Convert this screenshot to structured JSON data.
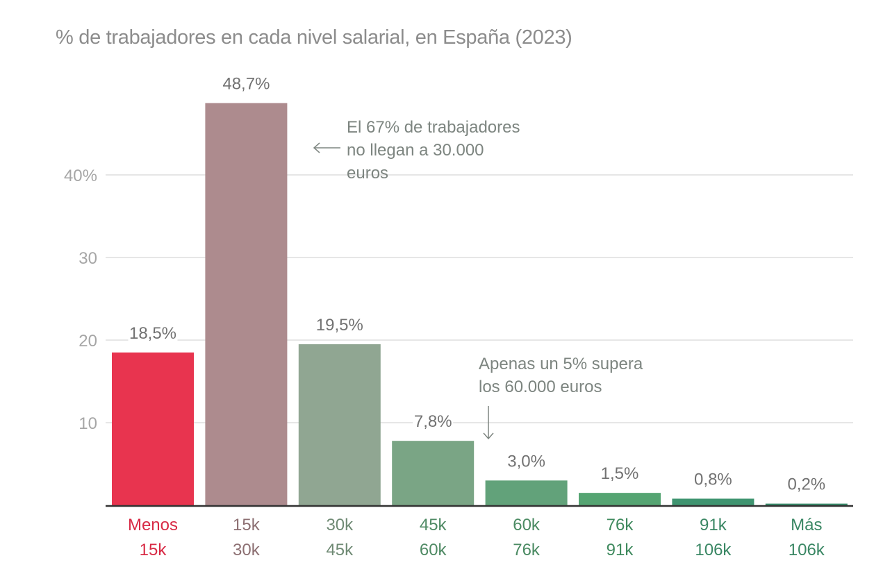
{
  "chart_data": {
    "type": "bar",
    "title": "% de trabajadores en cada nivel salarial, en España (2023)",
    "xlabel": "",
    "ylabel": "",
    "ylim": [
      0,
      50
    ],
    "grid": true,
    "y_ticks": [
      {
        "value": 10,
        "label": "10"
      },
      {
        "value": 20,
        "label": "20"
      },
      {
        "value": 30,
        "label": "30"
      },
      {
        "value": 40,
        "label": "40%"
      }
    ],
    "categories": [
      [
        "Menos",
        "15k"
      ],
      [
        "15k",
        "30k"
      ],
      [
        "30k",
        "45k"
      ],
      [
        "45k",
        "60k"
      ],
      [
        "60k",
        "76k"
      ],
      [
        "76k",
        "91k"
      ],
      [
        "91k",
        "106k"
      ],
      [
        "Más",
        "106k"
      ]
    ],
    "values": [
      18.5,
      48.7,
      19.5,
      7.8,
      3.0,
      1.5,
      0.8,
      0.2
    ],
    "value_labels": [
      "18,5%",
      "48,7%",
      "19,5%",
      "7,8%",
      "3,0%",
      "1,5%",
      "0,8%",
      "0,2%"
    ],
    "colors": [
      "#e8344f",
      "#ad8b8e",
      "#90a692",
      "#7aa585",
      "#62a27a",
      "#55a472",
      "#3f9470",
      "#388a6a"
    ],
    "label_colors": [
      "#d82a45",
      "#8c6f72",
      "#6f8a74",
      "#4f8a64",
      "#4a8a62",
      "#3f8a5e",
      "#3a8764",
      "#3a8764"
    ],
    "annotations": [
      {
        "text": [
          "El 67% de trabajadores",
          "no llegan a 30.000",
          "euros"
        ],
        "arrow": "left",
        "points_to_category": 1
      },
      {
        "text": [
          "Apenas un 5% supera",
          "los 60.000 euros"
        ],
        "arrow": "down",
        "points_to_category": 4
      }
    ]
  }
}
